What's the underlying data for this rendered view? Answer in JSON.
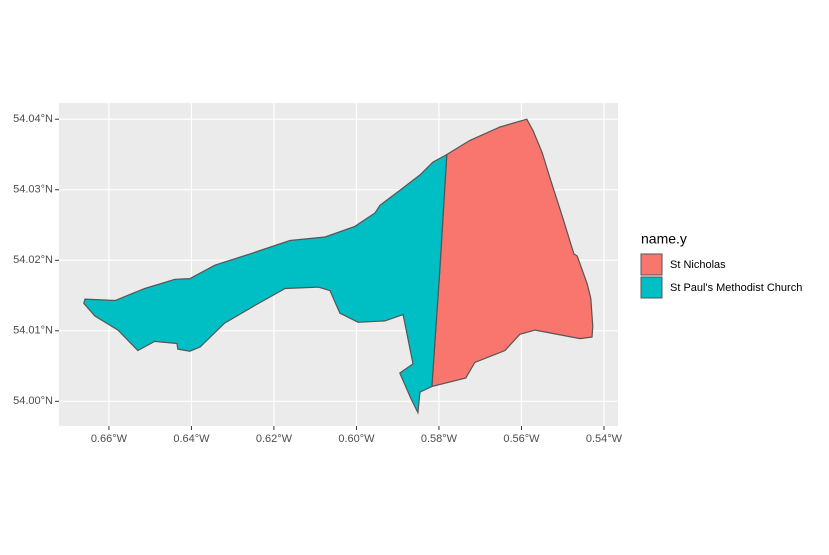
{
  "chart_data": {
    "type": "map",
    "legend_title": "name.y",
    "legend": "right",
    "grid": true,
    "border_color": "#555555",
    "xlim": [
      -0.6721,
      -0.5366
    ],
    "ylim": [
      53.9965,
      54.0423
    ],
    "xticks": [
      {
        "value": -0.66,
        "label": "0.66°W"
      },
      {
        "value": -0.64,
        "label": "0.64°W"
      },
      {
        "value": -0.62,
        "label": "0.62°W"
      },
      {
        "value": -0.6,
        "label": "0.60°W"
      },
      {
        "value": -0.58,
        "label": "0.58°W"
      },
      {
        "value": -0.56,
        "label": "0.56°W"
      },
      {
        "value": -0.54,
        "label": "0.54°W"
      }
    ],
    "yticks": [
      {
        "value": 54.0,
        "label": "54.00°N"
      },
      {
        "value": 54.01,
        "label": "54.01°N"
      },
      {
        "value": 54.02,
        "label": "54.02°N"
      },
      {
        "value": 54.03,
        "label": "54.03°N"
      },
      {
        "value": 54.04,
        "label": "54.04°N"
      }
    ],
    "series": [
      {
        "name": "St Nicholas",
        "color": "#f8766d",
        "lon": [
          -0.5781,
          -0.5725,
          -0.5652,
          -0.5587,
          -0.5572,
          -0.555,
          -0.5529,
          -0.5502,
          -0.5473,
          -0.5465,
          -0.5441,
          -0.5432,
          -0.5427,
          -0.5429,
          -0.5458,
          -0.5567,
          -0.5604,
          -0.564,
          -0.5713,
          -0.5735,
          -0.5817,
          -0.5798
        ],
        "lat": [
          54.035,
          54.037,
          54.0389,
          54.04,
          54.0384,
          54.0353,
          54.0313,
          54.0264,
          54.0209,
          54.0206,
          54.0167,
          54.0146,
          54.0106,
          54.0091,
          54.0089,
          54.0101,
          54.0095,
          54.0072,
          54.0055,
          54.0033,
          54.0021,
          54.0186
        ]
      },
      {
        "name": "St Paul's Methodist Church",
        "color": "#00bfc4",
        "lon": [
          -0.5781,
          -0.5798,
          -0.5817,
          -0.5846,
          -0.5851,
          -0.5868,
          -0.5895,
          -0.5863,
          -0.5887,
          -0.5931,
          -0.5996,
          -0.604,
          -0.6064,
          -0.6093,
          -0.6173,
          -0.6246,
          -0.6319,
          -0.6379,
          -0.6404,
          -0.6433,
          -0.6435,
          -0.6489,
          -0.653,
          -0.6578,
          -0.6634,
          -0.6661,
          -0.6658,
          -0.6585,
          -0.6513,
          -0.644,
          -0.6404,
          -0.6343,
          -0.6258,
          -0.6161,
          -0.6076,
          -0.6004,
          -0.5955,
          -0.5943,
          -0.5895,
          -0.5846,
          -0.5815
        ],
        "lat": [
          54.035,
          54.0186,
          54.0021,
          54.0013,
          53.9984,
          54.0004,
          54.004,
          54.0053,
          54.0123,
          54.0114,
          54.0112,
          54.0125,
          54.0157,
          54.0162,
          54.016,
          54.0136,
          54.0111,
          54.0077,
          54.0071,
          54.0074,
          54.0082,
          54.0085,
          54.0072,
          54.0101,
          54.0121,
          54.0139,
          54.0145,
          54.0143,
          54.016,
          54.0173,
          54.0174,
          54.0193,
          54.0209,
          54.0228,
          54.0233,
          54.0248,
          54.0267,
          54.0278,
          54.0299,
          54.0321,
          54.0339
        ]
      }
    ]
  }
}
